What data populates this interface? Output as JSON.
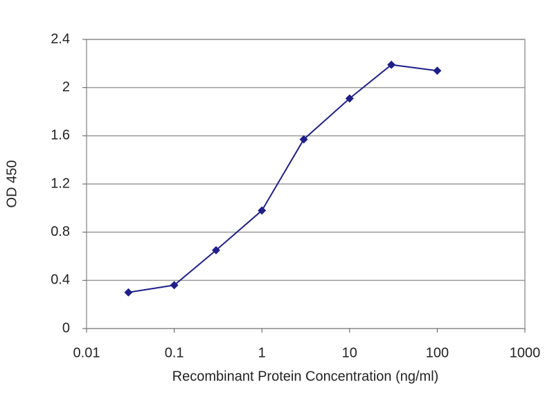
{
  "chart_data": {
    "type": "line",
    "x_label": "Recombinant Protein Concentration (ng/ml)",
    "y_label": "OD 450",
    "x": [
      0.03,
      0.1,
      0.3,
      1,
      3,
      10,
      30,
      100
    ],
    "values": [
      0.3,
      0.36,
      0.65,
      0.98,
      1.57,
      1.91,
      2.19,
      2.14
    ],
    "color": "#1f1f8a",
    "xscale": "log",
    "xlim": [
      0.01,
      1000
    ],
    "xticks": [
      0.01,
      0.1,
      1,
      10,
      100,
      1000
    ],
    "ylim": [
      0,
      2.4
    ],
    "yticks": [
      0,
      0.4,
      0.8,
      1.2,
      1.6,
      2,
      2.4
    ],
    "grid": true
  }
}
